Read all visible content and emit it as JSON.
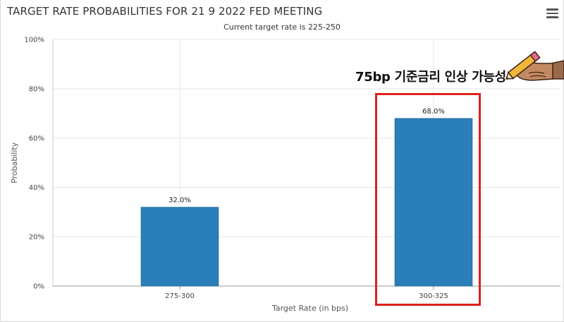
{
  "header": {
    "title": "TARGET RATE PROBABILITIES FOR 21 9 2022 FED MEETING",
    "subtitle": "Current target rate is 225-250"
  },
  "toolbar": {
    "menu_icon": "hamburger-menu-icon"
  },
  "annotation": {
    "text": "75bp 기준금리 인상 가능성",
    "box_color": "#e0201b",
    "icon": "pencil-hand-icon"
  },
  "chart_data": {
    "type": "bar",
    "title": "TARGET RATE PROBABILITIES FOR 21 9 2022 FED MEETING",
    "subtitle": "Current target rate is 225-250",
    "categories": [
      "275-300",
      "300-325"
    ],
    "values": [
      32.0,
      68.0
    ],
    "value_labels": [
      "32.0%",
      "68.0%"
    ],
    "xlabel": "Target Rate (in bps)",
    "ylabel": "Probability",
    "ylim": [
      0,
      100
    ],
    "yticks": [
      "0%",
      "20%",
      "40%",
      "60%",
      "80%",
      "100%"
    ],
    "grid": true,
    "bar_color": "#2a7fba"
  }
}
